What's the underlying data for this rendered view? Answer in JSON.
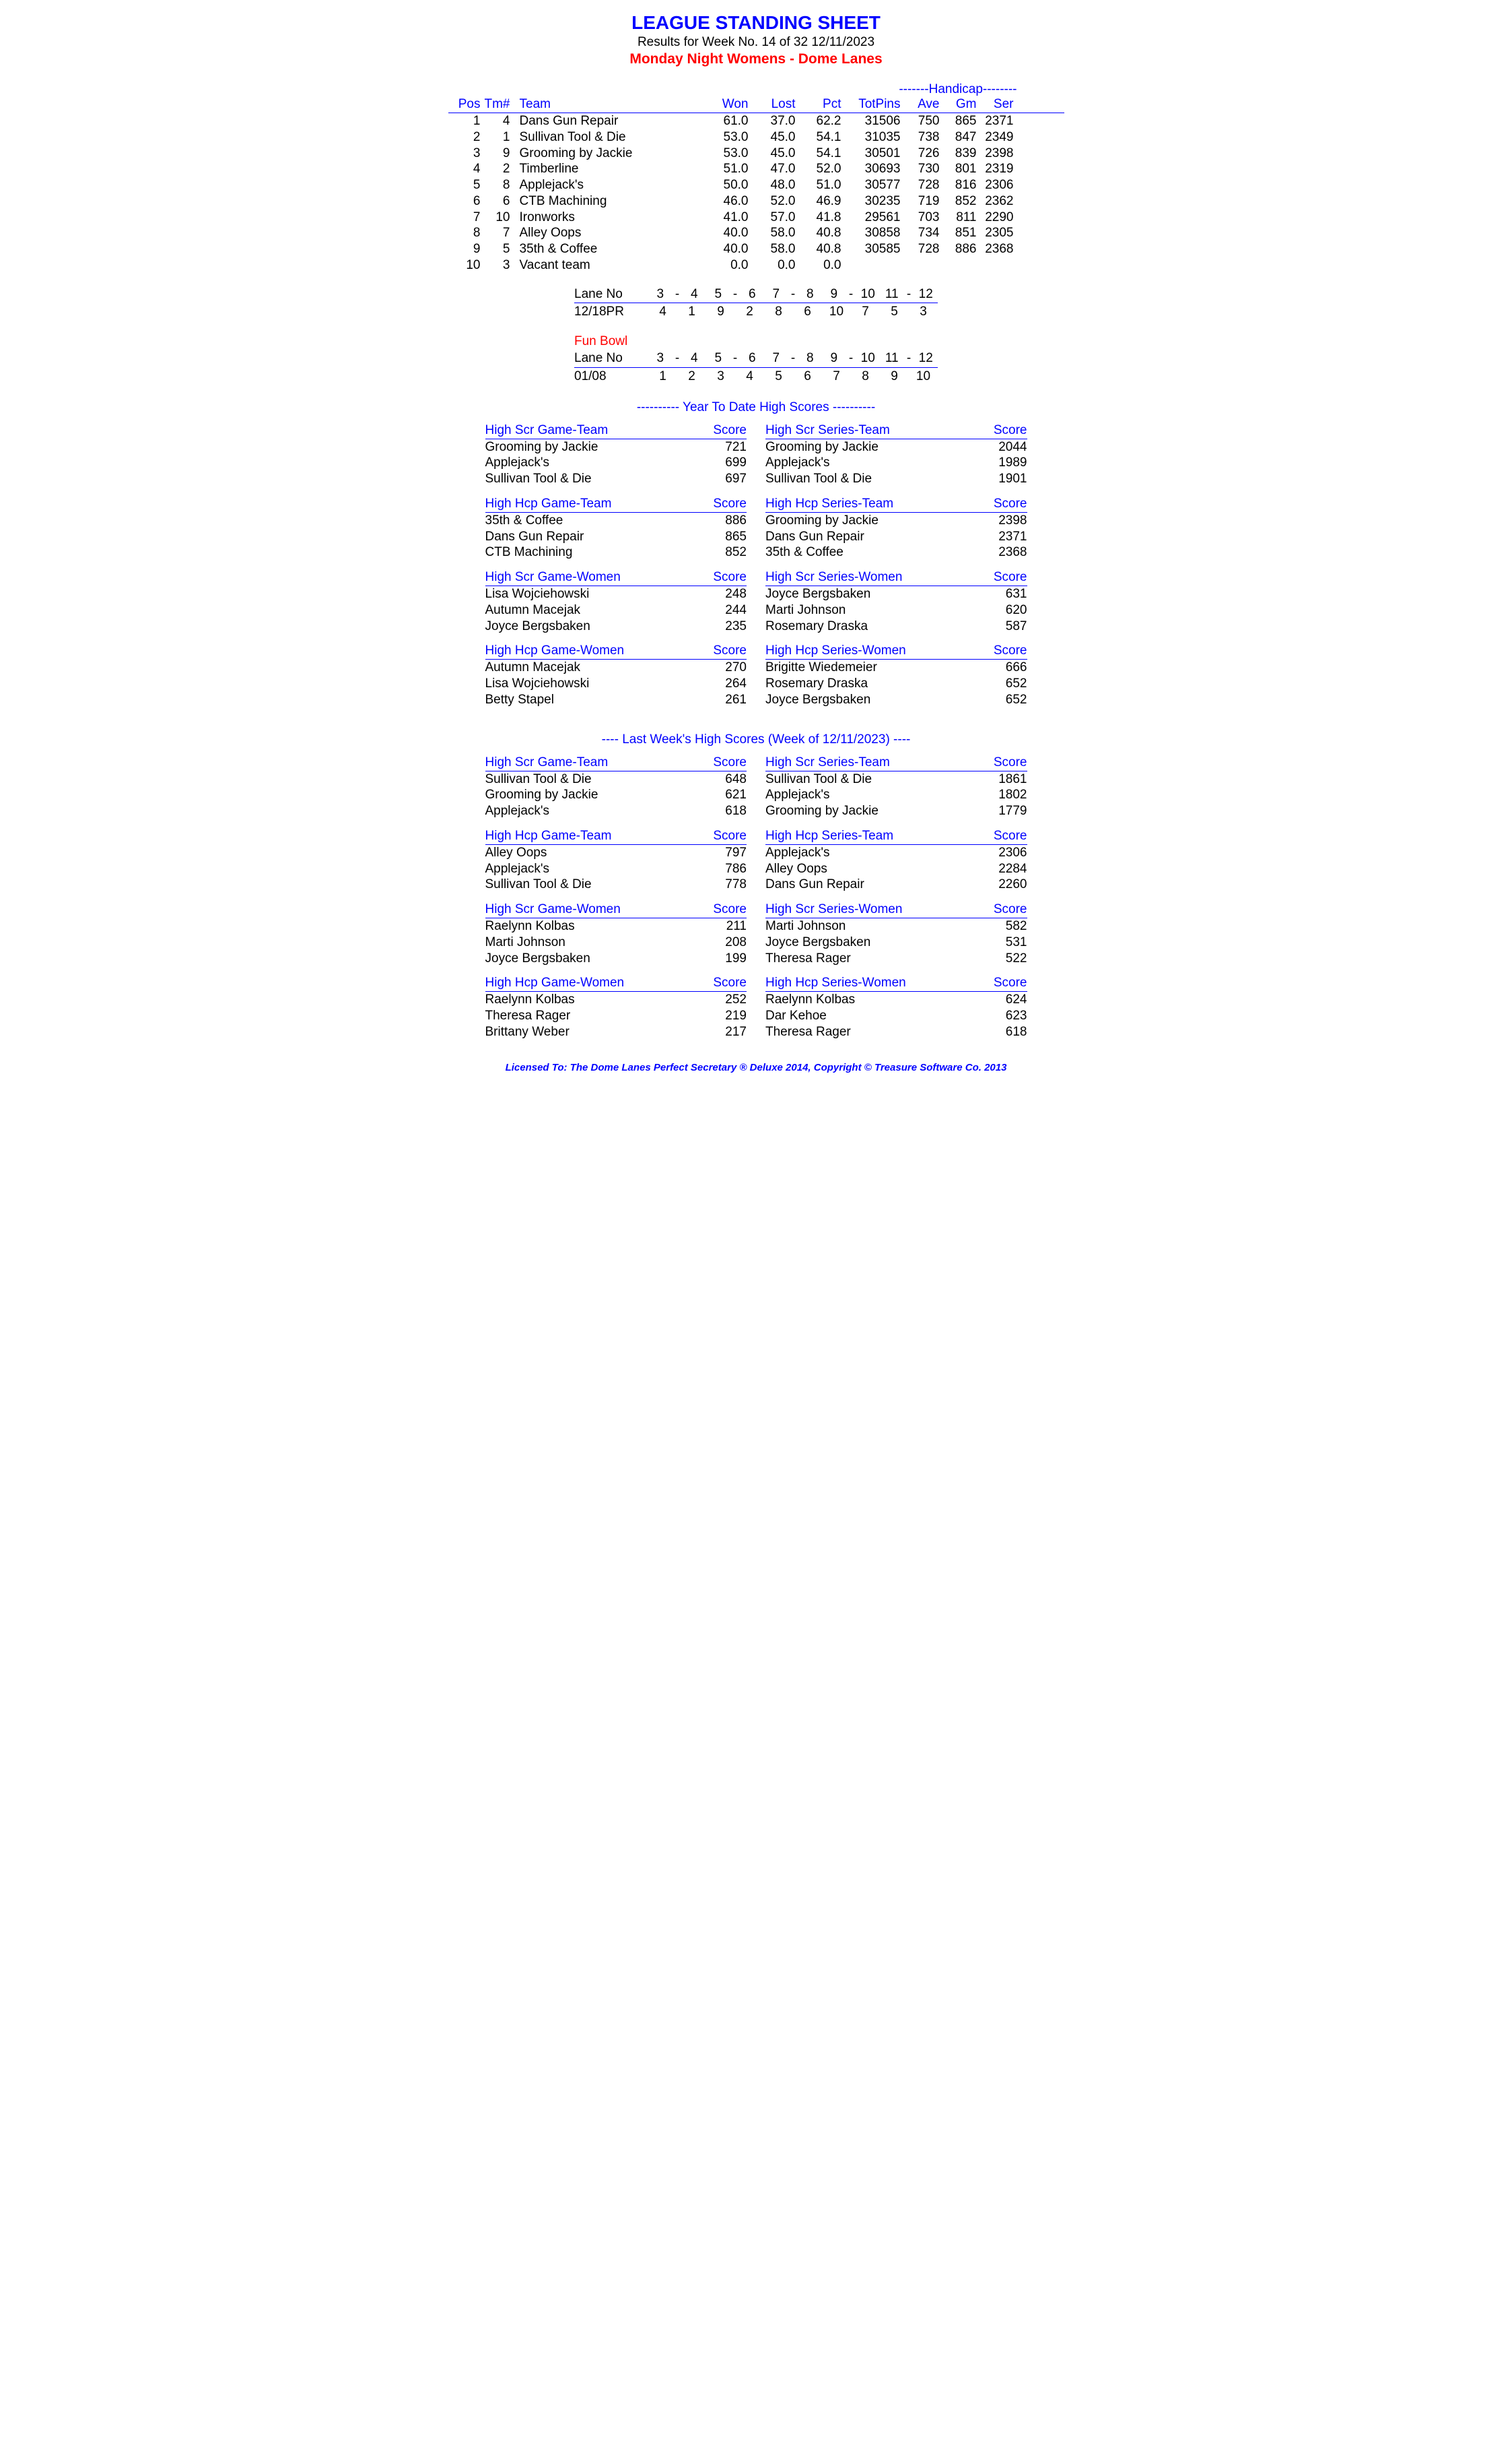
{
  "colors": {
    "blue": "#0000ff",
    "red": "#ff0000",
    "black": "#000000",
    "background": "#ffffff"
  },
  "fonts": {
    "family": "Arial",
    "body_size": 19,
    "title_size": 28
  },
  "header": {
    "title": "LEAGUE STANDING SHEET",
    "results": "Results for Week No. 14 of 32    12/11/2023",
    "league": "Monday Night Womens - Dome Lanes"
  },
  "standings": {
    "handicap_label": "-------Handicap--------",
    "columns": {
      "pos": "Pos",
      "tm": "Tm#",
      "team": "Team",
      "won": "Won",
      "lost": "Lost",
      "pct": "Pct",
      "totpins": "TotPins",
      "ave": "Ave",
      "gm": "Gm",
      "ser": "Ser"
    },
    "rows": [
      {
        "pos": "1",
        "tm": "4",
        "team": "Dans Gun Repair",
        "won": "61.0",
        "lost": "37.0",
        "pct": "62.2",
        "totpins": "31506",
        "ave": "750",
        "gm": "865",
        "ser": "2371"
      },
      {
        "pos": "2",
        "tm": "1",
        "team": "Sullivan Tool & Die",
        "won": "53.0",
        "lost": "45.0",
        "pct": "54.1",
        "totpins": "31035",
        "ave": "738",
        "gm": "847",
        "ser": "2349"
      },
      {
        "pos": "3",
        "tm": "9",
        "team": "Grooming by Jackie",
        "won": "53.0",
        "lost": "45.0",
        "pct": "54.1",
        "totpins": "30501",
        "ave": "726",
        "gm": "839",
        "ser": "2398"
      },
      {
        "pos": "4",
        "tm": "2",
        "team": "Timberline",
        "won": "51.0",
        "lost": "47.0",
        "pct": "52.0",
        "totpins": "30693",
        "ave": "730",
        "gm": "801",
        "ser": "2319"
      },
      {
        "pos": "5",
        "tm": "8",
        "team": "Applejack's",
        "won": "50.0",
        "lost": "48.0",
        "pct": "51.0",
        "totpins": "30577",
        "ave": "728",
        "gm": "816",
        "ser": "2306"
      },
      {
        "pos": "6",
        "tm": "6",
        "team": "CTB Machining",
        "won": "46.0",
        "lost": "52.0",
        "pct": "46.9",
        "totpins": "30235",
        "ave": "719",
        "gm": "852",
        "ser": "2362"
      },
      {
        "pos": "7",
        "tm": "10",
        "team": "Ironworks",
        "won": "41.0",
        "lost": "57.0",
        "pct": "41.8",
        "totpins": "29561",
        "ave": "703",
        "gm": "811",
        "ser": "2290"
      },
      {
        "pos": "8",
        "tm": "7",
        "team": "Alley Oops",
        "won": "40.0",
        "lost": "58.0",
        "pct": "40.8",
        "totpins": "30858",
        "ave": "734",
        "gm": "851",
        "ser": "2305"
      },
      {
        "pos": "9",
        "tm": "5",
        "team": "35th & Coffee",
        "won": "40.0",
        "lost": "58.0",
        "pct": "40.8",
        "totpins": "30585",
        "ave": "728",
        "gm": "886",
        "ser": "2368"
      },
      {
        "pos": "10",
        "tm": "3",
        "team": "Vacant team",
        "won": "0.0",
        "lost": "0.0",
        "pct": "0.0",
        "totpins": "",
        "ave": "",
        "gm": "",
        "ser": ""
      }
    ]
  },
  "lanes1": {
    "label": "Lane No",
    "pairs": [
      [
        "3",
        "4"
      ],
      [
        "5",
        "6"
      ],
      [
        "7",
        "8"
      ],
      [
        "9",
        "10"
      ],
      [
        "11",
        "12"
      ]
    ],
    "date": "12/18PR",
    "assign": [
      [
        "4",
        "1"
      ],
      [
        "9",
        "2"
      ],
      [
        "8",
        "6"
      ],
      [
        "10",
        "7"
      ],
      [
        "5",
        "3"
      ]
    ]
  },
  "lanes2": {
    "fun": "Fun Bowl",
    "label": "Lane No",
    "pairs": [
      [
        "3",
        "4"
      ],
      [
        "5",
        "6"
      ],
      [
        "7",
        "8"
      ],
      [
        "9",
        "10"
      ],
      [
        "11",
        "12"
      ]
    ],
    "date": "01/08",
    "assign": [
      [
        "1",
        "2"
      ],
      [
        "3",
        "4"
      ],
      [
        "5",
        "6"
      ],
      [
        "7",
        "8"
      ],
      [
        "9",
        "10"
      ]
    ]
  },
  "ytd_title": "----------  Year To Date High Scores  ----------",
  "lw_title": "----   Last Week's High Scores    (Week of 12/11/2023)   ----",
  "score_label": "Score",
  "ytd": {
    "blocks": [
      {
        "title": "High Scr Game-Team",
        "rows": [
          [
            "Grooming by Jackie",
            "721"
          ],
          [
            "Applejack's",
            "699"
          ],
          [
            "Sullivan Tool & Die",
            "697"
          ]
        ]
      },
      {
        "title": "High Scr Series-Team",
        "rows": [
          [
            "Grooming by Jackie",
            "2044"
          ],
          [
            "Applejack's",
            "1989"
          ],
          [
            "Sullivan Tool & Die",
            "1901"
          ]
        ]
      },
      {
        "title": "High Hcp Game-Team",
        "rows": [
          [
            "35th & Coffee",
            "886"
          ],
          [
            "Dans Gun Repair",
            "865"
          ],
          [
            "CTB Machining",
            "852"
          ]
        ]
      },
      {
        "title": "High Hcp Series-Team",
        "rows": [
          [
            "Grooming by Jackie",
            "2398"
          ],
          [
            "Dans Gun Repair",
            "2371"
          ],
          [
            "35th & Coffee",
            "2368"
          ]
        ]
      },
      {
        "title": "High Scr Game-Women",
        "rows": [
          [
            "Lisa Wojciehowski",
            "248"
          ],
          [
            "Autumn Macejak",
            "244"
          ],
          [
            "Joyce Bergsbaken",
            "235"
          ]
        ]
      },
      {
        "title": "High Scr Series-Women",
        "rows": [
          [
            "Joyce Bergsbaken",
            "631"
          ],
          [
            "Marti Johnson",
            "620"
          ],
          [
            "Rosemary Draska",
            "587"
          ]
        ]
      },
      {
        "title": "High Hcp Game-Women",
        "rows": [
          [
            "Autumn Macejak",
            "270"
          ],
          [
            "Lisa Wojciehowski",
            "264"
          ],
          [
            "Betty Stapel",
            "261"
          ]
        ]
      },
      {
        "title": "High Hcp Series-Women",
        "rows": [
          [
            "Brigitte Wiedemeier",
            "666"
          ],
          [
            "Rosemary Draska",
            "652"
          ],
          [
            "Joyce Bergsbaken",
            "652"
          ]
        ]
      }
    ]
  },
  "lw": {
    "blocks": [
      {
        "title": "High Scr Game-Team",
        "rows": [
          [
            "Sullivan Tool & Die",
            "648"
          ],
          [
            "Grooming by Jackie",
            "621"
          ],
          [
            "Applejack's",
            "618"
          ]
        ]
      },
      {
        "title": "High Scr Series-Team",
        "rows": [
          [
            "Sullivan Tool & Die",
            "1861"
          ],
          [
            "Applejack's",
            "1802"
          ],
          [
            "Grooming by Jackie",
            "1779"
          ]
        ]
      },
      {
        "title": "High Hcp Game-Team",
        "rows": [
          [
            "Alley Oops",
            "797"
          ],
          [
            "Applejack's",
            "786"
          ],
          [
            "Sullivan Tool & Die",
            "778"
          ]
        ]
      },
      {
        "title": "High Hcp Series-Team",
        "rows": [
          [
            "Applejack's",
            "2306"
          ],
          [
            "Alley Oops",
            "2284"
          ],
          [
            "Dans Gun Repair",
            "2260"
          ]
        ]
      },
      {
        "title": "High Scr Game-Women",
        "rows": [
          [
            "Raelynn Kolbas",
            "211"
          ],
          [
            "Marti Johnson",
            "208"
          ],
          [
            "Joyce Bergsbaken",
            "199"
          ]
        ]
      },
      {
        "title": "High Scr Series-Women",
        "rows": [
          [
            "Marti Johnson",
            "582"
          ],
          [
            "Joyce Bergsbaken",
            "531"
          ],
          [
            "Theresa Rager",
            "522"
          ]
        ]
      },
      {
        "title": "High Hcp Game-Women",
        "rows": [
          [
            "Raelynn Kolbas",
            "252"
          ],
          [
            "Theresa Rager",
            "219"
          ],
          [
            "Brittany Weber",
            "217"
          ]
        ]
      },
      {
        "title": "High Hcp Series-Women",
        "rows": [
          [
            "Raelynn Kolbas",
            "624"
          ],
          [
            "Dar Kehoe",
            "623"
          ],
          [
            "Theresa Rager",
            "618"
          ]
        ]
      }
    ]
  },
  "footer": "Licensed To: The Dome Lanes    Perfect Secretary ® Deluxe  2014, Copyright © Treasure Software Co. 2013"
}
